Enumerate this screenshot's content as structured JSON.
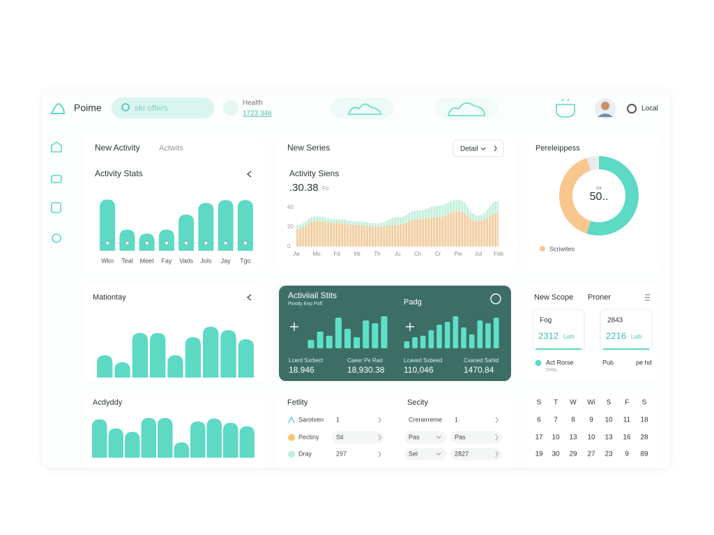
{
  "header": {
    "brand": "Poime",
    "search": "ski offers",
    "health_label": "Health",
    "health_value": "1723 346",
    "user": "Local"
  },
  "activity": {
    "tabs": [
      "New Activity",
      "Actwits"
    ],
    "title": "Activity Stats",
    "categories": [
      "Wkn",
      "Teal",
      "Meet",
      "Fay",
      "Vads",
      "Jols",
      "Jay",
      "Tgo"
    ],
    "values": [
      92,
      38,
      31,
      38,
      65,
      86,
      91,
      91
    ],
    "ylim": [
      0,
      100
    ],
    "color": "#5dd9c4"
  },
  "series": {
    "title": "New Series",
    "dropdown": "Detail",
    "subtitle": "Activity Siens",
    "value": ".30.38",
    "unit": "Fo",
    "categories": [
      "Jw",
      "Mo",
      "Fd",
      "Irb",
      "Th",
      "Ju",
      "Ch",
      "Cr",
      "Pw",
      "Jul",
      "Feb"
    ],
    "ylim": [
      0,
      50
    ],
    "yticks": [
      0,
      20,
      40
    ],
    "series": [
      {
        "color": "#b9ecd4",
        "values": [
          22,
          31,
          28,
          26,
          24,
          30,
          37,
          42,
          48,
          32,
          47
        ]
      },
      {
        "color": "#f8c793",
        "values": [
          18,
          26,
          24,
          22,
          20,
          22,
          28,
          30,
          36,
          26,
          34
        ]
      }
    ]
  },
  "donut": {
    "title": "Pereleippess",
    "center_label": "tot",
    "center_value": "50..",
    "legend": "Scriwites",
    "segments": [
      {
        "value": 55,
        "color": "#5dd9c4"
      },
      {
        "value": 40,
        "color": "#f9c68e"
      },
      {
        "value": 5,
        "color": "#e8eceb"
      }
    ]
  },
  "monthly": {
    "title": "Mationtay",
    "values": [
      32,
      22,
      64,
      64,
      32,
      58,
      73,
      68,
      55
    ],
    "ylim": [
      0,
      80
    ],
    "color": "#5dd9c4"
  },
  "dark": {
    "title": "Activiiail Stits",
    "subtitle": "Pwotly Eep Poff",
    "title2": "Padg",
    "left_values": [
      12,
      24,
      18,
      44,
      28,
      16,
      40,
      36,
      46
    ],
    "right_values": [
      10,
      16,
      18,
      26,
      34,
      38,
      46,
      30,
      20,
      40,
      36,
      44
    ],
    "ylim": [
      0,
      50
    ],
    "color": "#5ee0c8",
    "stats": [
      {
        "label": "Lcerd Sxrbect",
        "value": "18.946"
      },
      {
        "label": "Caeer Pe Rad",
        "value": "18,930.38"
      },
      {
        "label": "Lcaved Sxbeed",
        "value": "110,046"
      },
      {
        "label": "Cxaned Sahld",
        "value": "1470.84"
      }
    ]
  },
  "scope": {
    "tabs": [
      "New Scope",
      "Proner"
    ],
    "cards": [
      {
        "label": "Fog",
        "value": "2312",
        "unit": "Loth"
      },
      {
        "label": "2843",
        "value": "2216",
        "unit": "Loth"
      }
    ],
    "legend": [
      "Act Rorse",
      "Pub",
      "pe hd"
    ],
    "legend_note": "Delay"
  },
  "daily": {
    "title": "Acdyddy",
    "values": [
      55,
      42,
      37,
      57,
      57,
      22,
      52,
      56,
      50,
      45
    ],
    "ylim": [
      0,
      60
    ],
    "color": "#5dd9c4"
  },
  "lists": {
    "left_title": "Fetlity",
    "right_title": "Secity",
    "left_rows": [
      [
        "Sarotven",
        "1"
      ],
      [
        "Pectiny",
        "Sti"
      ],
      [
        "Dray",
        "297"
      ]
    ],
    "right_rows": [
      [
        "Crenerreme",
        "1"
      ],
      [
        "Pas",
        "Pas"
      ],
      [
        "Sel",
        "2827"
      ]
    ]
  },
  "calendar": {
    "days": [
      "S",
      "T",
      "W",
      "Wi",
      "S",
      "F",
      "S"
    ],
    "weeks": [
      [
        "6",
        "7",
        "8",
        "9",
        "10",
        "11",
        "18"
      ],
      [
        "17",
        "10",
        "13",
        "10",
        "13",
        "16",
        "28"
      ],
      [
        "19",
        "30",
        "29",
        "27",
        "23",
        "9",
        "89"
      ]
    ]
  }
}
